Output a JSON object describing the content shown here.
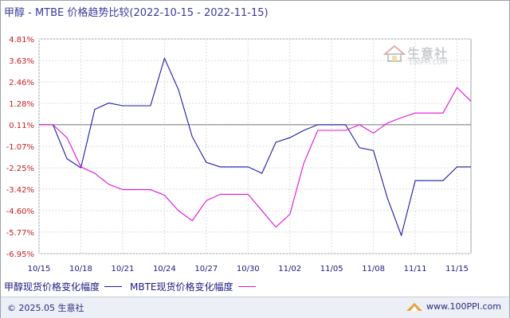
{
  "title": "甲醇 - MTBE 价格趋势比较(2022-10-15 - 2022-11-15)",
  "watermark": {
    "name": "生意社",
    "url": "100PPI.COM"
  },
  "footer": {
    "copyright": "© 2025.05 生意社",
    "site": "www.100PPI.com"
  },
  "colors": {
    "series1": "#1a1aa8",
    "series2": "#e010d8",
    "axis_labels": "#c81e1e",
    "baseline": "#777777"
  },
  "chart_data": {
    "type": "line",
    "title": "甲醇 - MTBE 价格趋势比较(2022-10-15 - 2022-11-15)",
    "y_ticks": [
      "4.81%",
      "3.63%",
      "2.46%",
      "1.28%",
      "0.11%",
      "-1.07%",
      "-2.25%",
      "-3.42%",
      "-4.60%",
      "-5.77%",
      "-6.95%"
    ],
    "ylim": [
      -6.95,
      4.81
    ],
    "x_tick_labels": [
      "10/15",
      "10/18",
      "10/21",
      "10/24",
      "10/27",
      "10/30",
      "11/02",
      "11/05",
      "11/08",
      "11/11",
      "11/15"
    ],
    "x_tick_dates": [
      "10/15",
      "10/18",
      "10/21",
      "10/24",
      "10/27",
      "10/30",
      "11/02",
      "11/05",
      "11/08",
      "11/11",
      "11/14"
    ],
    "grid": true,
    "legend_position": "bottom",
    "x": [
      "10/15",
      "10/16",
      "10/17",
      "10/18",
      "10/19",
      "10/20",
      "10/21",
      "10/22",
      "10/23",
      "10/24",
      "10/25",
      "10/26",
      "10/27",
      "10/28",
      "10/29",
      "10/30",
      "10/31",
      "11/01",
      "11/02",
      "11/03",
      "11/04",
      "11/05",
      "11/06",
      "11/07",
      "11/08",
      "11/09",
      "11/10",
      "11/11",
      "11/12",
      "11/13",
      "11/14",
      "11/15"
    ],
    "series": [
      {
        "name": "甲醇现货价格变化幅度",
        "color": "#1a1aa8",
        "values": [
          0.11,
          0.11,
          -1.75,
          -2.25,
          0.95,
          1.3,
          1.15,
          1.15,
          1.15,
          3.75,
          2.05,
          -0.55,
          -1.95,
          -2.2,
          -2.2,
          -2.2,
          -2.55,
          -0.85,
          -0.6,
          -0.2,
          0.11,
          0.11,
          0.11,
          -1.15,
          -1.3,
          -3.9,
          -5.95,
          -2.95,
          -2.95,
          -2.95,
          -2.2,
          -2.2
        ]
      },
      {
        "name": "MBTE现货价格变化幅度",
        "color": "#e010d8",
        "values": [
          0.11,
          0.11,
          -0.6,
          -2.2,
          -2.55,
          -3.15,
          -3.45,
          -3.45,
          -3.45,
          -3.75,
          -4.6,
          -5.15,
          -4.05,
          -3.7,
          -3.7,
          -3.7,
          -4.6,
          -5.5,
          -4.8,
          -2.0,
          -0.2,
          -0.2,
          -0.2,
          0.11,
          -0.35,
          0.2,
          0.5,
          0.75,
          0.75,
          0.75,
          2.15,
          1.4
        ]
      }
    ]
  }
}
